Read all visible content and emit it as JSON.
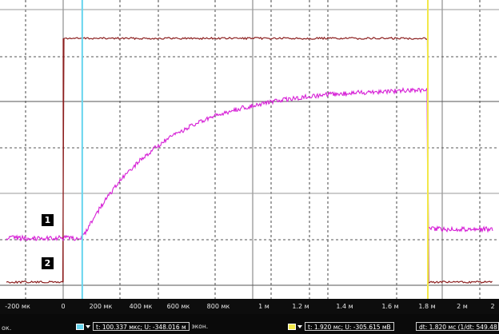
{
  "window": {},
  "channels": [
    {
      "label": "1",
      "color": "#d61fd6"
    },
    {
      "label": "2",
      "color": "#8c1f1f"
    }
  ],
  "cursors": {
    "cursor1": {
      "color": "#66d5ee",
      "readout": "t: 100.337 мкс; U: -348.016 м",
      "unit_suffix": "экон.",
      "time_us": 100.337
    },
    "cursor2": {
      "color": "#f2e84a",
      "readout": "t: 1.920 мс; U: -305.615 мВ",
      "time_us": 1920
    },
    "delta_readout": "dt: 1.820 мс (1/dt: 549.48"
  },
  "status_left": "ок.",
  "axis": {
    "tick_labels": [
      "-200 мк",
      "0",
      "200 мк",
      "400 мк",
      "600 мк",
      "800 мк",
      "1 м",
      "1.2 м",
      "1.4 м",
      "1.6 м",
      "1.8 м",
      "2 м",
      "2"
    ],
    "x_range_us": [
      -260,
      2330
    ]
  },
  "chart_data": {
    "type": "line",
    "x_unit": "мкс",
    "series": [
      {
        "name": "1",
        "color": "#d61fd6",
        "shape": "exponential-rise",
        "baseline": 0.0,
        "high": 1.0,
        "rise_start_us": 100,
        "tau_us": 420,
        "fall_us": 1920
      },
      {
        "name": "2",
        "color": "#8c1f1f",
        "shape": "rectangular-pulse",
        "low": 0.0,
        "high": 1.0,
        "rise_us": 0,
        "fall_us": 1920
      }
    ],
    "grid": true
  }
}
